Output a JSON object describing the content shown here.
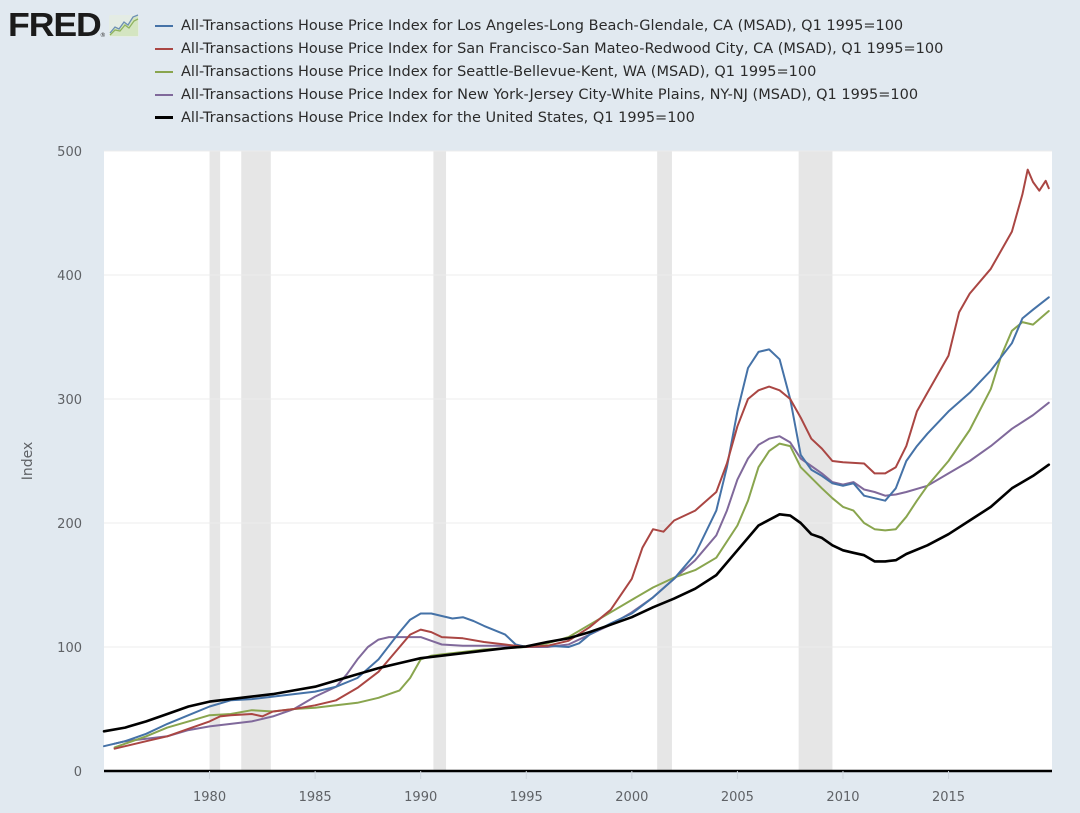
{
  "app": {
    "logo_text": "FRED",
    "logo_mark": "®",
    "logo_icon": "chart-line-icon"
  },
  "chart_data": {
    "type": "line",
    "title": "",
    "xlabel": "",
    "ylabel": "Index",
    "ylim": [
      0,
      500
    ],
    "xlim": [
      1975.0,
      2019.9
    ],
    "yticks": [
      0,
      100,
      200,
      300,
      400,
      500
    ],
    "xticks": [
      1980,
      1985,
      1990,
      1995,
      2000,
      2005,
      2010,
      2015
    ],
    "grid": true,
    "legend_position": "top",
    "recessions": [
      [
        1980.0,
        1980.5
      ],
      [
        1981.5,
        1982.9
      ],
      [
        1990.6,
        1991.2
      ],
      [
        2001.2,
        2001.9
      ],
      [
        2007.9,
        2009.5
      ]
    ],
    "series": [
      {
        "name": "All-Transactions House Price Index for Los Angeles-Long Beach-Glendale, CA (MSAD), Q1 1995=100",
        "color": "#4572a7",
        "x": [
          1975,
          1976,
          1977,
          1978,
          1979,
          1980,
          1981,
          1982,
          1983,
          1984,
          1985,
          1986,
          1987,
          1988,
          1989,
          1989.5,
          1990,
          1990.5,
          1991,
          1991.5,
          1992,
          1992.5,
          1993,
          1994,
          1994.5,
          1995,
          1996,
          1997,
          1997.5,
          1998,
          1999,
          2000,
          2001,
          2002,
          2003,
          2004,
          2004.5,
          2005,
          2005.5,
          2006,
          2006.5,
          2007,
          2007.5,
          2008,
          2008.5,
          2009,
          2009.5,
          2010,
          2010.5,
          2011,
          2011.5,
          2012,
          2012.5,
          2013,
          2013.5,
          2014,
          2015,
          2016,
          2017,
          2018,
          2018.5,
          2019,
          2019.75
        ],
        "values": [
          20,
          24,
          30,
          38,
          45,
          52,
          57,
          58,
          60,
          62,
          64,
          68,
          75,
          90,
          112,
          122,
          127,
          127,
          125,
          123,
          124,
          121,
          117,
          110,
          102,
          100,
          101,
          100,
          103,
          110,
          119,
          127,
          140,
          155,
          175,
          210,
          245,
          290,
          325,
          338,
          340,
          332,
          300,
          255,
          243,
          238,
          232,
          230,
          232,
          222,
          220,
          218,
          228,
          250,
          262,
          272,
          290,
          305,
          323,
          345,
          365,
          372,
          382
        ]
      },
      {
        "name": "All-Transactions House Price Index for San Francisco-San Mateo-Redwood City, CA (MSAD), Q1 1995=100",
        "color": "#aa4643",
        "x": [
          1975.5,
          1976,
          1977,
          1978,
          1979,
          1980,
          1980.5,
          1981,
          1982,
          1982.5,
          1983,
          1984,
          1985,
          1986,
          1987,
          1988,
          1989,
          1989.5,
          1990,
          1990.5,
          1991,
          1992,
          1993,
          1994,
          1995,
          1996,
          1997,
          1998,
          1999,
          2000,
          2000.5,
          2001,
          2001.5,
          2002,
          2003,
          2004,
          2004.5,
          2005,
          2005.5,
          2006,
          2006.5,
          2007,
          2007.5,
          2008,
          2008.5,
          2009,
          2009.5,
          2010,
          2011,
          2011.5,
          2012,
          2012.5,
          2013,
          2013.5,
          2014,
          2015,
          2015.5,
          2016,
          2017,
          2018,
          2018.5,
          2018.75,
          2019,
          2019.3,
          2019.6,
          2019.75
        ],
        "values": [
          18,
          20,
          24,
          28,
          34,
          40,
          44,
          45,
          46,
          44,
          48,
          50,
          53,
          57,
          67,
          80,
          100,
          110,
          114,
          112,
          108,
          107,
          104,
          102,
          100,
          101,
          105,
          116,
          130,
          155,
          180,
          195,
          193,
          202,
          210,
          225,
          248,
          278,
          300,
          307,
          310,
          307,
          300,
          285,
          268,
          260,
          250,
          249,
          248,
          240,
          240,
          245,
          262,
          290,
          305,
          335,
          370,
          385,
          405,
          435,
          465,
          485,
          475,
          468,
          476,
          470
        ]
      },
      {
        "name": "All-Transactions House Price Index for Seattle-Bellevue-Kent, WA (MSAD), Q1 1995=100",
        "color": "#89a54e",
        "x": [
          1975.5,
          1976,
          1977,
          1978,
          1979,
          1980,
          1981,
          1982,
          1983,
          1984,
          1985,
          1986,
          1987,
          1988,
          1989,
          1989.5,
          1990,
          1990.5,
          1991,
          1992,
          1993,
          1994,
          1995,
          1996,
          1997,
          1998,
          1999,
          2000,
          2001,
          2002,
          2003,
          2004,
          2005,
          2005.5,
          2006,
          2006.5,
          2007,
          2007.5,
          2008,
          2009,
          2009.5,
          2010,
          2010.5,
          2011,
          2011.5,
          2012,
          2012.5,
          2013,
          2013.5,
          2014,
          2015,
          2016,
          2017,
          2017.5,
          2018,
          2018.5,
          2019,
          2019.75
        ],
        "values": [
          19,
          22,
          28,
          35,
          40,
          45,
          46,
          49,
          48,
          50,
          51,
          53,
          55,
          59,
          65,
          75,
          90,
          93,
          94,
          96,
          98,
          99,
          100,
          103,
          108,
          118,
          128,
          138,
          148,
          156,
          162,
          172,
          198,
          218,
          245,
          258,
          264,
          262,
          245,
          228,
          220,
          213,
          210,
          200,
          195,
          194,
          195,
          205,
          218,
          230,
          250,
          275,
          308,
          335,
          355,
          362,
          360,
          371
        ]
      },
      {
        "name": "All-Transactions House Price Index for New York-Jersey City-White Plains, NY-NJ (MSAD), Q1 1995=100",
        "color": "#80699b",
        "x": [
          1975.5,
          1976,
          1977,
          1978,
          1979,
          1980,
          1981,
          1982,
          1983,
          1984,
          1985,
          1986,
          1986.5,
          1987,
          1987.5,
          1988,
          1988.5,
          1989,
          1990,
          1990.5,
          1991,
          1992,
          1993,
          1994,
          1995,
          1996,
          1997,
          1998,
          1999,
          2000,
          2001,
          2002,
          2003,
          2004,
          2004.5,
          2005,
          2005.5,
          2006,
          2006.5,
          2007,
          2007.5,
          2008,
          2008.5,
          2009,
          2009.5,
          2010,
          2010.5,
          2011,
          2011.5,
          2012,
          2012.5,
          2013,
          2014,
          2015,
          2016,
          2017,
          2018,
          2019,
          2019.75
        ],
        "values": [
          22,
          24,
          26,
          28,
          33,
          36,
          38,
          40,
          44,
          50,
          60,
          68,
          78,
          90,
          100,
          106,
          108,
          108,
          108,
          105,
          102,
          101,
          101,
          101,
          100,
          100,
          102,
          110,
          118,
          128,
          140,
          155,
          170,
          190,
          210,
          235,
          252,
          263,
          268,
          270,
          265,
          252,
          246,
          240,
          233,
          231,
          233,
          227,
          225,
          222,
          223,
          225,
          230,
          240,
          250,
          262,
          276,
          287,
          297
        ]
      },
      {
        "name": "All-Transactions House Price Index for the United States, Q1 1995=100",
        "color": "#000000",
        "x": [
          1975,
          1976,
          1977,
          1978,
          1979,
          1980,
          1981,
          1982,
          1983,
          1984,
          1985,
          1986,
          1987,
          1988,
          1989,
          1990,
          1991,
          1992,
          1993,
          1994,
          1995,
          1996,
          1997,
          1998,
          1999,
          2000,
          2001,
          2002,
          2003,
          2004,
          2005,
          2006,
          2007,
          2007.5,
          2008,
          2008.5,
          2009,
          2009.5,
          2010,
          2010.5,
          2011,
          2011.5,
          2012,
          2012.5,
          2013,
          2014,
          2015,
          2016,
          2017,
          2018,
          2019,
          2019.75
        ],
        "values": [
          32,
          35,
          40,
          46,
          52,
          56,
          58,
          60,
          62,
          65,
          68,
          73,
          78,
          83,
          87,
          91,
          93,
          95,
          97,
          99,
          100.5,
          104,
          107,
          112,
          118,
          124,
          132,
          139,
          147,
          158,
          178,
          198,
          207,
          206,
          200,
          191,
          188,
          182,
          178,
          176,
          174,
          169,
          169,
          170,
          175,
          182,
          191,
          202,
          213,
          228,
          238,
          247
        ]
      }
    ]
  }
}
